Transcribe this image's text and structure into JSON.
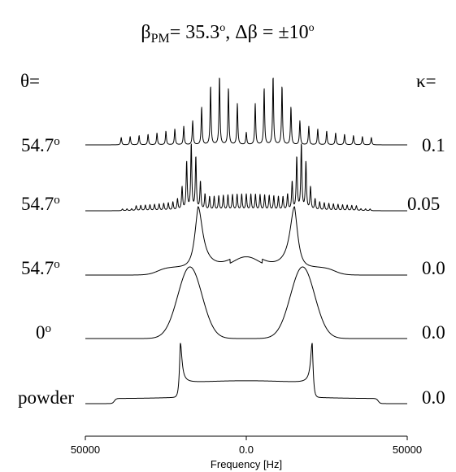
{
  "chart_data": {
    "type": "line",
    "title_parts": {
      "beta": "β",
      "beta_sub": "PM",
      "beta_value": "= 35.3",
      "beta_deg": "o",
      "separator": ", ",
      "delta_beta": "Δβ",
      "delta_value": "  = ±10",
      "delta_deg": "o"
    },
    "left_header": "θ=",
    "right_header": "κ=",
    "xlabel": "Frequency [Hz]",
    "x_ticks": [
      "50000",
      "0.0",
      "50000"
    ],
    "xlim": [
      50000,
      -50000
    ],
    "series": [
      {
        "theta": "54.7",
        "theta_deg": "o",
        "kappa": "0.1",
        "kind": "spikes"
      },
      {
        "theta": "54.7",
        "theta_deg": "o",
        "kappa": "0.05",
        "kind": "spikes_dense"
      },
      {
        "theta": "54.7",
        "theta_deg": "o",
        "kappa": "0.0",
        "kind": "horn_shoulder"
      },
      {
        "theta": "0",
        "theta_deg": "o",
        "kappa": "0.0",
        "kind": "broad_double"
      },
      {
        "theta": "powder",
        "theta_deg": "",
        "kappa": "0.0",
        "kind": "pake"
      }
    ]
  }
}
